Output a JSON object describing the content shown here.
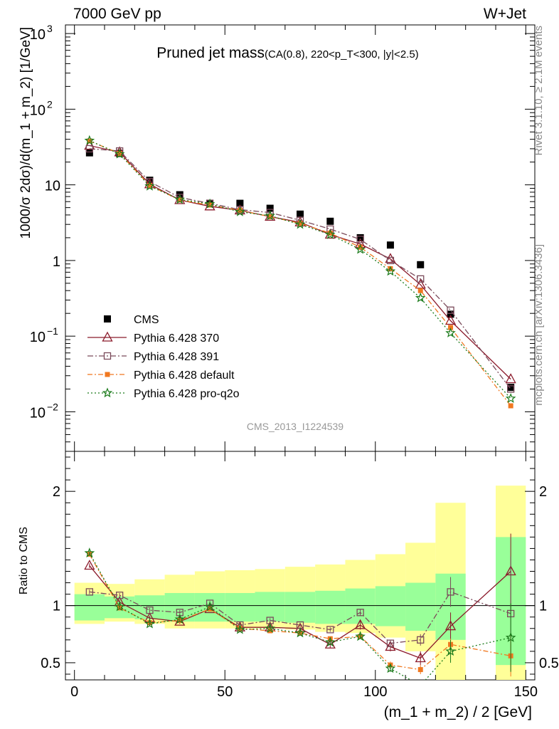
{
  "header": {
    "left": "7000 GeV pp",
    "right": "W+Jet"
  },
  "side": {
    "rivet": "Rivet 3.1.10, ≥ 2.1M events",
    "mcplots": "mcplots.cern.ch [arXiv:1306.3436]"
  },
  "chart_data": {
    "type": "line",
    "title_main": "Pruned jet mass",
    "title_sub": "(CA(0.8), 220<p_T<300, |y|<2.5)",
    "watermark": "CMS_2013_I1224539",
    "xlabel": "(m_1 + m_2) / 2 [GeV]",
    "ylabel": "1000/σ 2dσ)/d(m_1 + m_2) [1/GeV]",
    "ratio_ylabel": "Ratio to CMS",
    "xlim": [
      -3,
      153
    ],
    "ylim": [
      0.003,
      1300
    ],
    "yscale": "log",
    "ratio_ylim": [
      0.35,
      2.35
    ],
    "x_ticks": [
      "0",
      "50",
      "100",
      "150"
    ],
    "y_ticks": [
      "10^-2",
      "10^-1",
      "1",
      "10",
      "10^2",
      "10^3"
    ],
    "ratio_ticks": [
      "0.5",
      "1",
      "2"
    ],
    "x": [
      5,
      15,
      25,
      35,
      45,
      55,
      65,
      75,
      85,
      95,
      105,
      115,
      125,
      145
    ],
    "bin_edges": [
      0,
      10,
      20,
      30,
      40,
      50,
      60,
      70,
      80,
      90,
      100,
      110,
      120,
      130,
      140,
      150
    ],
    "band_inner": [
      [
        0.87,
        1.1
      ],
      [
        0.89,
        1.08
      ],
      [
        0.88,
        1.09
      ],
      [
        0.86,
        1.11
      ],
      [
        0.86,
        1.11
      ],
      [
        0.86,
        1.11
      ],
      [
        0.86,
        1.12
      ],
      [
        0.85,
        1.12
      ],
      [
        0.84,
        1.13
      ],
      [
        0.84,
        1.15
      ],
      [
        0.82,
        1.17
      ],
      [
        0.78,
        1.2
      ],
      [
        0.7,
        1.28
      ],
      null,
      [
        0.48,
        1.6
      ]
    ],
    "band_outer": [
      [
        0.84,
        1.2
      ],
      [
        0.86,
        1.19
      ],
      [
        0.84,
        1.23
      ],
      [
        0.8,
        1.27
      ],
      [
        0.8,
        1.3
      ],
      [
        0.8,
        1.31
      ],
      [
        0.8,
        1.32
      ],
      [
        0.79,
        1.34
      ],
      [
        0.77,
        1.36
      ],
      [
        0.76,
        1.4
      ],
      [
        0.72,
        1.45
      ],
      [
        0.6,
        1.55
      ],
      [
        0.35,
        1.9
      ],
      null,
      [
        0.35,
        2.05
      ]
    ],
    "legend": {
      "placement": "lower-left",
      "entries": [
        "CMS",
        "Pythia 6.428 370",
        "Pythia 6.428 391",
        "Pythia 6.428 default",
        "Pythia 6.428 pro-q2o"
      ]
    },
    "series": [
      {
        "name": "CMS",
        "color": "#000000",
        "marker": "square-filled",
        "values": [
          26.5,
          26.0,
          11.5,
          7.4,
          5.6,
          5.7,
          4.9,
          4.1,
          3.3,
          2.0,
          1.6,
          0.88,
          0.195,
          0.021
        ]
      },
      {
        "name": "Pythia 6.428 370",
        "color": "#8b1a2b",
        "marker": "triangle-open",
        "dash": "",
        "values": [
          33.0,
          27.0,
          10.2,
          6.3,
          5.2,
          4.6,
          3.8,
          3.2,
          2.2,
          1.65,
          1.05,
          0.48,
          0.16,
          0.027
        ],
        "ratio": [
          1.35,
          1.03,
          0.89,
          0.86,
          0.97,
          0.81,
          0.81,
          0.8,
          0.66,
          0.83,
          0.64,
          0.54,
          0.82,
          1.3
        ],
        "ratio_err": [
          0.02,
          0.02,
          0.02,
          0.02,
          0.02,
          0.02,
          0.02,
          0.02,
          0.03,
          0.04,
          0.04,
          0.06,
          0.12,
          0.33
        ]
      },
      {
        "name": "Pythia 6.428 391",
        "color": "#7a4a5a",
        "marker": "square-open",
        "dash": "8,3,2,3",
        "values": [
          30.0,
          28.0,
          11.0,
          6.8,
          5.7,
          4.7,
          4.3,
          3.4,
          2.6,
          1.9,
          1.0,
          0.57,
          0.22,
          0.02
        ],
        "ratio": [
          1.12,
          1.09,
          0.96,
          0.94,
          1.02,
          0.83,
          0.87,
          0.83,
          0.79,
          0.94,
          0.67,
          0.7,
          1.12,
          0.93
        ],
        "ratio_err": [
          0.02,
          0.02,
          0.02,
          0.02,
          0.02,
          0.02,
          0.02,
          0.02,
          0.02,
          0.03,
          0.03,
          0.05,
          0.13,
          0.5
        ]
      },
      {
        "name": "Pythia 6.428 default",
        "color": "#f07820",
        "marker": "square-filled-small",
        "dash": "7,3,2,3",
        "values": [
          38.0,
          26.0,
          9.8,
          6.3,
          5.4,
          4.6,
          3.8,
          3.1,
          2.3,
          1.5,
          0.78,
          0.4,
          0.13,
          0.012
        ],
        "ratio": [
          1.45,
          0.98,
          0.85,
          0.87,
          0.97,
          0.8,
          0.78,
          0.76,
          0.71,
          0.73,
          0.48,
          0.44,
          0.66,
          0.56
        ],
        "ratio_err": [
          0.02,
          0.02,
          0.02,
          0.02,
          0.02,
          0.02,
          0.02,
          0.02,
          0.02,
          0.02,
          0.03,
          0.04,
          0.05,
          0.18
        ]
      },
      {
        "name": "Pythia 6.428 pro-q2o",
        "color": "#1a7a1a",
        "marker": "star",
        "dash": "2,3",
        "values": [
          38.5,
          25.5,
          9.6,
          6.4,
          5.6,
          4.4,
          3.9,
          3.0,
          2.2,
          1.4,
          0.72,
          0.32,
          0.11,
          0.015
        ],
        "ratio": [
          1.46,
          0.99,
          0.84,
          0.88,
          0.99,
          0.79,
          0.8,
          0.76,
          0.68,
          0.73,
          0.45,
          0.3,
          0.6,
          0.72
        ],
        "ratio_err": [
          0.02,
          0.02,
          0.02,
          0.02,
          0.02,
          0.02,
          0.02,
          0.02,
          0.02,
          0.02,
          0.03,
          0.04,
          0.1,
          0.3
        ]
      }
    ]
  }
}
